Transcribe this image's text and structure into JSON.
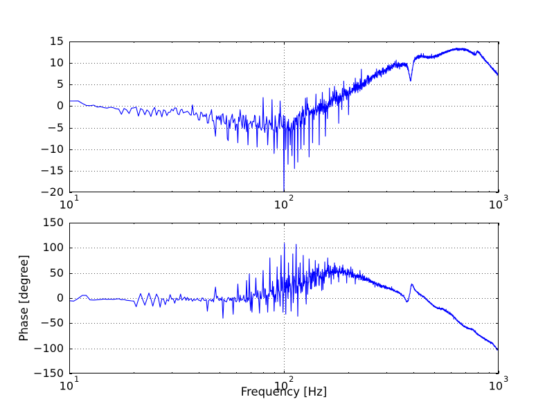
{
  "figure": {
    "kind": "bode-plot",
    "background": "#ffffff",
    "subplot_count": 2,
    "axis_color": "#000000",
    "grid_color": "#4d4d4d",
    "trace_color": "#0000ff"
  },
  "chart_data": [
    {
      "id": "magnitude",
      "type": "line",
      "title": "",
      "xlabel": "",
      "ylabel": "",
      "x_scale": "log",
      "xlim": [
        10,
        1000
      ],
      "ylim": [
        -20,
        15
      ],
      "yticks": [
        15,
        10,
        5,
        0,
        -5,
        -10,
        -15,
        -20
      ],
      "xticks": [
        10,
        100,
        1000
      ],
      "xtick_base": "10",
      "xtick_exponents": [
        "1",
        "2",
        "3"
      ],
      "xtick_minor": [
        20,
        30,
        40,
        50,
        60,
        70,
        80,
        90,
        200,
        300,
        400,
        500,
        600,
        700,
        800,
        900
      ],
      "grid": "dotted-major",
      "legend": "none",
      "line_color": "#0000ff",
      "trend": [
        [
          10,
          1.1
        ],
        [
          11.4,
          1.1
        ],
        [
          11.6,
          0.3
        ],
        [
          13,
          0.1
        ],
        [
          13.2,
          -0.4
        ],
        [
          14.5,
          -0.2
        ],
        [
          16,
          -0.5
        ],
        [
          18,
          -0.7
        ],
        [
          20,
          -0.5
        ],
        [
          23,
          -0.8
        ],
        [
          26,
          -0.9
        ],
        [
          30,
          -1.2
        ],
        [
          36,
          -1.7
        ],
        [
          42,
          -2.2
        ],
        [
          50,
          -2.8
        ],
        [
          58,
          -3.4
        ],
        [
          66,
          -3.8
        ],
        [
          75,
          -4.1
        ],
        [
          85,
          -4.3
        ],
        [
          95,
          -4.4
        ],
        [
          105,
          -4.2
        ],
        [
          115,
          -3.4
        ],
        [
          125,
          -2.1
        ],
        [
          140,
          -1.0
        ],
        [
          156,
          0.2
        ],
        [
          175,
          1.8
        ],
        [
          195,
          3.0
        ],
        [
          220,
          4.5
        ],
        [
          243,
          5.9
        ],
        [
          270,
          7.3
        ],
        [
          300,
          8.6
        ],
        [
          327,
          9.4
        ],
        [
          352,
          9.6
        ],
        [
          365,
          9.7
        ],
        [
          372,
          9.6
        ],
        [
          378,
          9.0
        ],
        [
          383,
          7.5
        ],
        [
          389,
          5.6
        ],
        [
          395,
          8.0
        ],
        [
          401,
          10.0
        ],
        [
          408,
          11.0
        ],
        [
          420,
          11.4
        ],
        [
          440,
          11.6
        ],
        [
          460,
          11.4
        ],
        [
          480,
          11.3
        ],
        [
          500,
          11.5
        ],
        [
          520,
          11.7
        ],
        [
          545,
          12.2
        ],
        [
          570,
          12.6
        ],
        [
          600,
          13.0
        ],
        [
          640,
          13.3
        ],
        [
          680,
          13.2
        ],
        [
          705,
          13.1
        ],
        [
          740,
          12.6
        ],
        [
          772,
          12.0
        ],
        [
          782,
          11.9
        ],
        [
          792,
          12.6
        ],
        [
          800,
          12.7
        ],
        [
          815,
          12.3
        ],
        [
          840,
          11.4
        ],
        [
          862,
          10.7
        ],
        [
          895,
          9.9
        ],
        [
          929,
          8.9
        ],
        [
          960,
          8.1
        ],
        [
          1000,
          7.2
        ]
      ],
      "noise_envelope": [
        [
          10,
          0.15
        ],
        [
          14,
          0.25
        ],
        [
          18,
          0.35
        ],
        [
          22,
          0.55
        ],
        [
          28,
          0.85
        ],
        [
          35,
          1.2
        ],
        [
          45,
          1.7
        ],
        [
          55,
          2.0
        ],
        [
          65,
          2.2
        ],
        [
          75,
          2.4
        ],
        [
          85,
          2.5
        ],
        [
          95,
          2.7
        ],
        [
          105,
          2.8
        ],
        [
          115,
          2.8
        ],
        [
          130,
          2.6
        ],
        [
          150,
          2.4
        ],
        [
          170,
          2.3
        ],
        [
          200,
          1.9
        ],
        [
          230,
          1.5
        ],
        [
          260,
          1.1
        ],
        [
          300,
          0.85
        ],
        [
          340,
          0.8
        ],
        [
          380,
          0.6
        ],
        [
          420,
          0.5
        ],
        [
          470,
          0.4
        ],
        [
          530,
          0.35
        ],
        [
          600,
          0.3
        ],
        [
          700,
          0.28
        ],
        [
          850,
          0.25
        ],
        [
          1000,
          0.22
        ]
      ],
      "spikes": [
        [
          17.5,
          -1.9
        ],
        [
          19,
          -1.7
        ],
        [
          21,
          -2.3
        ],
        [
          22.5,
          -2.0
        ],
        [
          24,
          -2.4
        ],
        [
          25.5,
          -2.1
        ],
        [
          27,
          -2.5
        ],
        [
          28.5,
          -2.2
        ],
        [
          48,
          -7
        ],
        [
          55,
          -8
        ],
        [
          61,
          -8.5
        ],
        [
          68,
          -9
        ],
        [
          75,
          -9.5
        ],
        [
          80,
          2
        ],
        [
          84,
          -9
        ],
        [
          88,
          1.5
        ],
        [
          90,
          -11
        ],
        [
          93,
          -9.8
        ],
        [
          96,
          1.2
        ],
        [
          100,
          -20
        ],
        [
          102,
          -10
        ],
        [
          104.5,
          -13.5
        ],
        [
          107,
          -9
        ],
        [
          109,
          -11.5
        ],
        [
          112,
          -14.5
        ],
        [
          116,
          -13
        ],
        [
          120,
          -10
        ],
        [
          124,
          -9
        ],
        [
          128,
          2
        ],
        [
          131,
          -11.8
        ],
        [
          136,
          -8.5
        ],
        [
          141,
          2.8
        ],
        [
          146,
          -9
        ],
        [
          151,
          3.2
        ],
        [
          156,
          -7
        ],
        [
          163,
          4.2
        ],
        [
          172,
          4.6
        ],
        [
          180,
          -4
        ],
        [
          190,
          5.8
        ],
        [
          200,
          -2
        ],
        [
          215,
          6.5
        ]
      ],
      "gen": {
        "df_hz": 0.5,
        "seed": 90125,
        "outlier_prob": 0.04,
        "outlier_gain": 2.1,
        "rare_prob": 0.012,
        "rare_gain": 2.9
      }
    },
    {
      "id": "phase",
      "type": "line",
      "title": "",
      "xlabel": "Frequency [Hz]",
      "ylabel": "Phase [degree]",
      "x_scale": "log",
      "xlim": [
        10,
        1000
      ],
      "ylim": [
        -150,
        150
      ],
      "yticks": [
        150,
        100,
        50,
        0,
        -50,
        -100,
        -150
      ],
      "xticks": [
        10,
        100,
        1000
      ],
      "xtick_base": "10",
      "xtick_exponents": [
        "1",
        "2",
        "3"
      ],
      "xtick_minor": [
        20,
        30,
        40,
        50,
        60,
        70,
        80,
        90,
        200,
        300,
        400,
        500,
        600,
        700,
        800,
        900
      ],
      "grid": "dotted-major",
      "legend": "none",
      "line_color": "#0000ff",
      "trend": [
        [
          10,
          -5
        ],
        [
          10.8,
          -6
        ],
        [
          11.2,
          5
        ],
        [
          12.1,
          5
        ],
        [
          12.4,
          -4
        ],
        [
          14,
          -2
        ],
        [
          16,
          -4
        ],
        [
          18,
          -2
        ],
        [
          21,
          -4
        ],
        [
          24,
          -2
        ],
        [
          28,
          -3
        ],
        [
          33,
          -2
        ],
        [
          40,
          -2
        ],
        [
          48,
          -1
        ],
        [
          56,
          -3
        ],
        [
          64,
          -1
        ],
        [
          72,
          1
        ],
        [
          80,
          4
        ],
        [
          88,
          8
        ],
        [
          96,
          13
        ],
        [
          104,
          17
        ],
        [
          112,
          21
        ],
        [
          120,
          27
        ],
        [
          130,
          35
        ],
        [
          142,
          42
        ],
        [
          155,
          48
        ],
        [
          170,
          52
        ],
        [
          185,
          53
        ],
        [
          200,
          51
        ],
        [
          215,
          45
        ],
        [
          243,
          37
        ],
        [
          270,
          28
        ],
        [
          305,
          20
        ],
        [
          340,
          12
        ],
        [
          360,
          4
        ],
        [
          368,
          -2
        ],
        [
          373,
          -8
        ],
        [
          380,
          -4
        ],
        [
          386,
          10
        ],
        [
          391,
          24
        ],
        [
          394,
          28
        ],
        [
          399,
          25
        ],
        [
          405,
          18
        ],
        [
          412,
          14
        ],
        [
          420,
          11
        ],
        [
          435,
          6
        ],
        [
          450,
          2
        ],
        [
          465,
          -4
        ],
        [
          480,
          -9
        ],
        [
          500,
          -16
        ],
        [
          520,
          -20
        ],
        [
          545,
          -21
        ],
        [
          570,
          -26
        ],
        [
          605,
          -33
        ],
        [
          650,
          -47
        ],
        [
          690,
          -56
        ],
        [
          720,
          -60
        ],
        [
          760,
          -63
        ],
        [
          790,
          -70
        ],
        [
          830,
          -77
        ],
        [
          862,
          -81
        ],
        [
          900,
          -86
        ],
        [
          915,
          -88
        ],
        [
          932,
          -89
        ],
        [
          955,
          -95
        ],
        [
          978,
          -100
        ],
        [
          1000,
          -104
        ]
      ],
      "noise_envelope": [
        [
          10,
          1.5
        ],
        [
          14,
          2
        ],
        [
          18,
          3
        ],
        [
          22,
          4.5
        ],
        [
          28,
          5
        ],
        [
          34,
          5
        ],
        [
          42,
          7
        ],
        [
          50,
          10
        ],
        [
          58,
          13
        ],
        [
          66,
          16
        ],
        [
          74,
          20
        ],
        [
          82,
          26
        ],
        [
          90,
          34
        ],
        [
          100,
          42
        ],
        [
          110,
          42
        ],
        [
          120,
          38
        ],
        [
          132,
          30
        ],
        [
          146,
          24
        ],
        [
          160,
          18
        ],
        [
          180,
          13
        ],
        [
          200,
          10
        ],
        [
          230,
          7
        ],
        [
          260,
          5
        ],
        [
          300,
          3.5
        ],
        [
          350,
          2.5
        ],
        [
          420,
          2
        ],
        [
          500,
          1.8
        ],
        [
          600,
          1.8
        ],
        [
          700,
          1.6
        ],
        [
          850,
          1.5
        ],
        [
          1000,
          1.5
        ]
      ],
      "spikes": [
        [
          20.5,
          -17
        ],
        [
          21.5,
          9
        ],
        [
          22.5,
          -14
        ],
        [
          23.5,
          10
        ],
        [
          24.5,
          -16
        ],
        [
          25.5,
          8
        ],
        [
          26.5,
          -18
        ],
        [
          28,
          -13
        ],
        [
          29.5,
          7
        ],
        [
          31,
          -10
        ],
        [
          33,
          8
        ],
        [
          44,
          -26
        ],
        [
          48,
          22
        ],
        [
          52,
          -40
        ],
        [
          58,
          -32
        ],
        [
          61,
          28
        ],
        [
          67,
          35
        ],
        [
          69,
          48
        ],
        [
          71,
          -28
        ],
        [
          74,
          40
        ],
        [
          77,
          -30
        ],
        [
          80,
          55
        ],
        [
          84,
          -28
        ],
        [
          86,
          80
        ],
        [
          90,
          -26
        ],
        [
          93,
          62
        ],
        [
          97,
          85
        ],
        [
          99,
          -28
        ],
        [
          100.5,
          109
        ],
        [
          102,
          -32
        ],
        [
          105,
          70
        ],
        [
          108,
          -26
        ],
        [
          110,
          88
        ],
        [
          114,
          107
        ],
        [
          116,
          -36
        ],
        [
          119,
          70
        ],
        [
          123,
          85
        ],
        [
          127,
          -12
        ],
        [
          131,
          78
        ],
        [
          136,
          58
        ],
        [
          140,
          75
        ],
        [
          145,
          68
        ],
        [
          150,
          15
        ],
        [
          155,
          72
        ],
        [
          160,
          80
        ],
        [
          166,
          28
        ],
        [
          172,
          70
        ],
        [
          180,
          32
        ],
        [
          188,
          66
        ],
        [
          196,
          30
        ],
        [
          205,
          62
        ],
        [
          215,
          28
        ],
        [
          226,
          55
        ]
      ],
      "gen": {
        "df_hz": 0.5,
        "seed": 4242,
        "outlier_prob": 0.04,
        "outlier_gain": 2.1,
        "rare_prob": 0.012,
        "rare_gain": 2.9
      }
    }
  ]
}
